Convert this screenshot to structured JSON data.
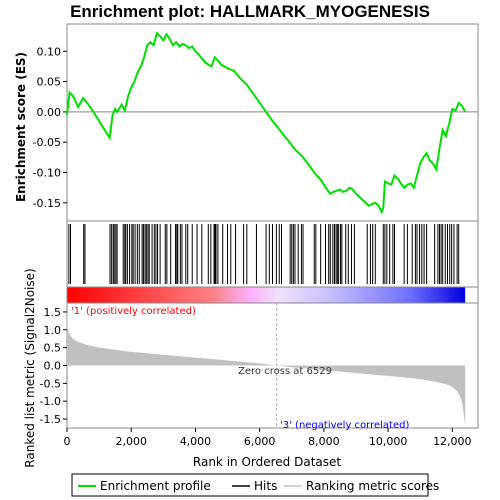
{
  "chart_data": {
    "type": "line",
    "title": "Enrichment plot: HALLMARK_MYOGENESIS",
    "es_panel": {
      "ylabel": "Enrichment score (ES)",
      "ylim": [
        -0.18,
        0.145
      ],
      "yticks": [
        "0.10",
        "0.05",
        "0.00",
        "-0.05",
        "-0.10",
        "-0.15"
      ],
      "ytick_values": [
        0.1,
        0.05,
        0.0,
        -0.05,
        -0.1,
        -0.15
      ],
      "series": [
        {
          "name": "Enrichment profile",
          "color": "#00e000",
          "x": [
            0,
            80,
            200,
            350,
            500,
            650,
            800,
            1000,
            1200,
            1330,
            1420,
            1500,
            1560,
            1700,
            1800,
            1900,
            2000,
            2100,
            2200,
            2300,
            2400,
            2500,
            2600,
            2700,
            2800,
            2900,
            3000,
            3100,
            3200,
            3300,
            3400,
            3500,
            3600,
            3700,
            3800,
            3900,
            4000,
            4100,
            4200,
            4300,
            4400,
            4500,
            4600,
            4700,
            4800,
            4900,
            5000,
            5100,
            5200,
            5400,
            5600,
            5800,
            6000,
            6200,
            6400,
            6529,
            6700,
            6900,
            7100,
            7300,
            7500,
            7700,
            7900,
            8000,
            8100,
            8200,
            8300,
            8400,
            8500,
            8600,
            8700,
            8800,
            8900,
            9000,
            9200,
            9400,
            9500,
            9600,
            9700,
            9800,
            9850,
            9900,
            10000,
            10100,
            10200,
            10300,
            10400,
            10500,
            10600,
            10700,
            10800,
            10900,
            11000,
            11100,
            11200,
            11300,
            11400,
            11500,
            11600,
            11700,
            11800,
            11900,
            12000,
            12100,
            12200,
            12300,
            12400
          ],
          "y": [
            -0.005,
            0.032,
            0.025,
            0.008,
            0.023,
            0.013,
            0.002,
            -0.015,
            -0.032,
            -0.043,
            -0.005,
            0.005,
            0.0,
            0.012,
            0.002,
            0.025,
            0.04,
            0.05,
            0.065,
            0.075,
            0.09,
            0.11,
            0.115,
            0.11,
            0.13,
            0.125,
            0.118,
            0.128,
            0.12,
            0.11,
            0.115,
            0.108,
            0.112,
            0.11,
            0.105,
            0.108,
            0.1,
            0.095,
            0.088,
            0.082,
            0.078,
            0.075,
            0.09,
            0.085,
            0.078,
            0.075,
            0.072,
            0.07,
            0.068,
            0.055,
            0.045,
            0.03,
            0.015,
            0.0,
            -0.015,
            -0.023,
            -0.035,
            -0.048,
            -0.062,
            -0.072,
            -0.085,
            -0.1,
            -0.112,
            -0.12,
            -0.128,
            -0.135,
            -0.132,
            -0.13,
            -0.128,
            -0.132,
            -0.13,
            -0.125,
            -0.128,
            -0.135,
            -0.145,
            -0.155,
            -0.152,
            -0.15,
            -0.155,
            -0.165,
            -0.158,
            -0.115,
            -0.118,
            -0.12,
            -0.105,
            -0.11,
            -0.118,
            -0.125,
            -0.12,
            -0.118,
            -0.125,
            -0.105,
            -0.085,
            -0.075,
            -0.068,
            -0.08,
            -0.085,
            -0.095,
            -0.06,
            -0.03,
            -0.04,
            -0.02,
            0.005,
            0.002,
            0.015,
            0.01,
            0.0
          ]
        }
      ]
    },
    "hits": {
      "name": "Hits",
      "positions": [
        60,
        110,
        520,
        560,
        1340,
        1390,
        1440,
        1470,
        1520,
        1560,
        1750,
        1800,
        1830,
        1880,
        1950,
        2020,
        2060,
        2120,
        2190,
        2250,
        2340,
        2380,
        2430,
        2470,
        2520,
        2560,
        2650,
        2720,
        2770,
        2820,
        2900,
        3060,
        3110,
        3230,
        3380,
        3420,
        3450,
        3530,
        3580,
        3700,
        3760,
        3900,
        4050,
        4200,
        4400,
        4480,
        4580,
        4610,
        4640,
        4700,
        4850,
        5000,
        5100,
        5250,
        5500,
        5600,
        5900,
        6200,
        6300,
        6400,
        6520,
        6610,
        6680,
        6950,
        7000,
        7050,
        7100,
        7200,
        7300,
        7350,
        7700,
        7750,
        7900,
        8050,
        8150,
        8200,
        8280,
        8330,
        8380,
        8420,
        8460,
        8520,
        8560,
        8680,
        8760,
        8860,
        8950,
        9350,
        9450,
        9520,
        9600,
        9850,
        9900,
        9960,
        10050,
        10150,
        10200,
        10500,
        10600,
        10750,
        10850,
        10900,
        10980,
        11050,
        11120,
        11200,
        11450,
        11550,
        11600,
        11650,
        11700,
        11780,
        11850,
        11920,
        11980,
        12050,
        12150,
        12200
      ]
    },
    "metric_panel": {
      "ylabel": "Ranked list metric (Signal2Noise)",
      "ylim": [
        -1.75,
        1.75
      ],
      "yticks": [
        "1.5",
        "1.0",
        "0.5",
        "0.0",
        "-0.5",
        "-1.0",
        "-1.5"
      ],
      "ytick_values": [
        1.5,
        1.0,
        0.5,
        0.0,
        -0.5,
        -1.0,
        -1.5
      ],
      "xlabel": "Rank in Ordered Dataset",
      "xticks": [
        "0",
        "2,000",
        "4,000",
        "6,000",
        "8,000",
        "10,000",
        "12,000"
      ],
      "xtick_values": [
        0,
        2000,
        4000,
        6000,
        8000,
        10000,
        12000
      ],
      "xlim": [
        0,
        12800
      ],
      "n_genes": 12400,
      "zero_cross": 6529,
      "zero_cross_text": "Zero cross at 6529",
      "positive_label": "'1' (positively correlated)",
      "negative_label": "'3' (negatively correlated)",
      "profile_x": [
        0,
        20,
        60,
        150,
        300,
        600,
        1000,
        1500,
        2000,
        3000,
        4000,
        5000,
        6000,
        6529,
        7000,
        8000,
        9000,
        10000,
        11000,
        11500,
        11800,
        12000,
        12150,
        12250,
        12320,
        12360,
        12400
      ],
      "profile_y": [
        1.8,
        1.1,
        0.92,
        0.78,
        0.68,
        0.58,
        0.5,
        0.44,
        0.38,
        0.3,
        0.22,
        0.14,
        0.06,
        0.0,
        -0.05,
        -0.13,
        -0.21,
        -0.29,
        -0.38,
        -0.46,
        -0.52,
        -0.6,
        -0.72,
        -0.88,
        -1.1,
        -1.4,
        -1.68
      ]
    },
    "legend": {
      "items": [
        {
          "label": "Enrichment profile",
          "color": "#00e000"
        },
        {
          "label": "Hits",
          "color": "#000000"
        },
        {
          "label": "Ranking metric scores",
          "color": "#c0c0c0"
        }
      ]
    },
    "colors": {
      "positive": "#ff0000",
      "negative": "#0000ff",
      "profile_fill": "#c0c0c0",
      "positive_text": "#ff0000",
      "negative_text": "#0000ff"
    }
  }
}
